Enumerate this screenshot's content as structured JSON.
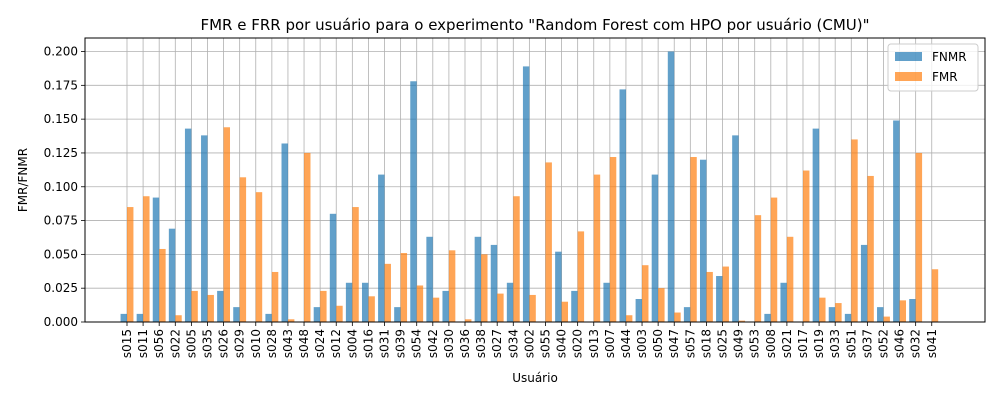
{
  "chart_data": {
    "type": "bar",
    "title": "FMR e FRR por usuário para o experimento \"Random Forest com HPO por usuário (CMU)\"",
    "xlabel": "Usuário",
    "ylabel": "FMR/FNMR",
    "ylim": [
      0,
      0.21
    ],
    "yticks": [
      "0.000",
      "0.025",
      "0.050",
      "0.075",
      "0.100",
      "0.125",
      "0.150",
      "0.175",
      "0.200"
    ],
    "grid": true,
    "legend_position": "top-right",
    "categories": [
      "s015",
      "s011",
      "s056",
      "s022",
      "s005",
      "s035",
      "s026",
      "s029",
      "s010",
      "s028",
      "s043",
      "s048",
      "s024",
      "s012",
      "s004",
      "s016",
      "s031",
      "s039",
      "s054",
      "s042",
      "s030",
      "s036",
      "s038",
      "s027",
      "s034",
      "s002",
      "s055",
      "s040",
      "s020",
      "s013",
      "s007",
      "s044",
      "s003",
      "s050",
      "s047",
      "s057",
      "s018",
      "s025",
      "s049",
      "s053",
      "s008",
      "s021",
      "s017",
      "s019",
      "s033",
      "s051",
      "s037",
      "s052",
      "s046",
      "s032",
      "s041"
    ],
    "series": [
      {
        "name": "FNMR",
        "color": "#1f77b4",
        "values": [
          0.006,
          0.006,
          0.092,
          0.069,
          0.143,
          0.138,
          0.023,
          0.011,
          0,
          0.006,
          0.132,
          0,
          0.011,
          0.08,
          0.029,
          0.029,
          0.109,
          0.011,
          0.178,
          0.063,
          0.023,
          0,
          0.063,
          0.057,
          0.029,
          0.189,
          0,
          0.052,
          0.023,
          0,
          0.029,
          0.172,
          0.017,
          0.109,
          0.2,
          0.011,
          0.12,
          0.034,
          0.138,
          0,
          0.006,
          0.029,
          0,
          0.143,
          0.011,
          0.006,
          0.057,
          0.011,
          0.149,
          0.017,
          0
        ]
      },
      {
        "name": "FMR",
        "color": "#ff7f0e",
        "values": [
          0.085,
          0.093,
          0.054,
          0.005,
          0.023,
          0.02,
          0.144,
          0.107,
          0.096,
          0.037,
          0.002,
          0.125,
          0.023,
          0.012,
          0.085,
          0.019,
          0.043,
          0.051,
          0.027,
          0.018,
          0.053,
          0.002,
          0.05,
          0.021,
          0.093,
          0.02,
          0.118,
          0.015,
          0.067,
          0.109,
          0.122,
          0.005,
          0.042,
          0.025,
          0.007,
          0.122,
          0.037,
          0.041,
          0.001,
          0.079,
          0.092,
          0.063,
          0.112,
          0.018,
          0.014,
          0.135,
          0.108,
          0.004,
          0.016,
          0.125,
          0.039
        ]
      }
    ]
  }
}
